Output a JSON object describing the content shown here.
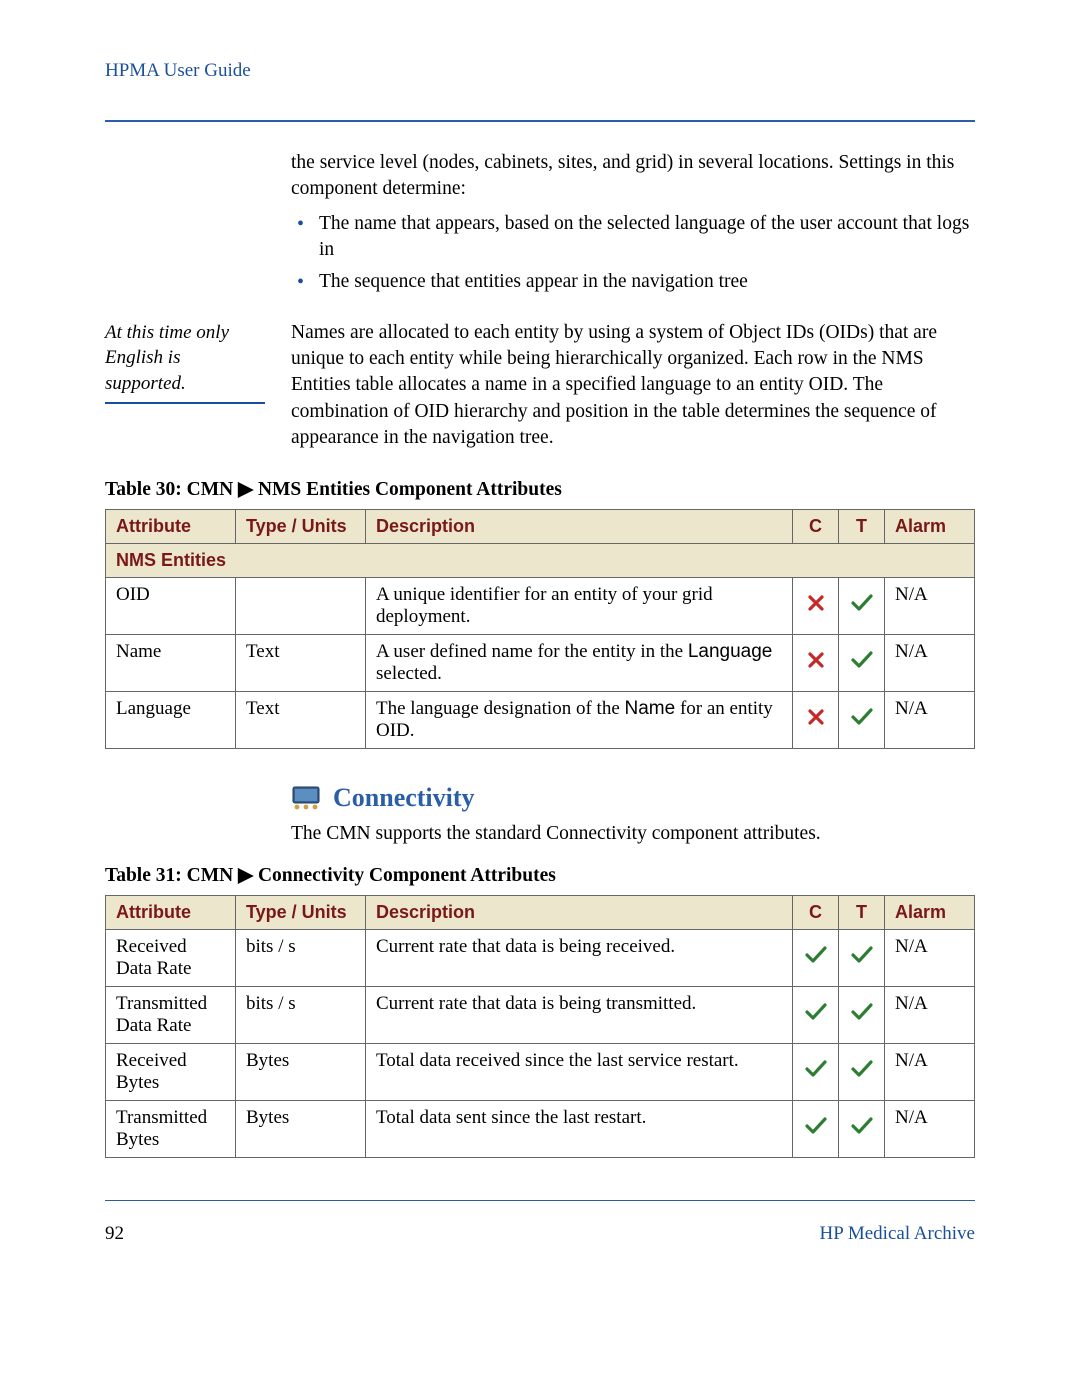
{
  "header": {
    "title": "HPMA User Guide"
  },
  "intro": {
    "paragraph1": "the service level (nodes, cabinets, sites, and grid) in several locations. Settings in this component determine:",
    "bullets": [
      "The name that appears, based on the selected language of the user account that logs in",
      "The sequence that entities appear in the navigation tree"
    ]
  },
  "side_note": "At this time only English is supported.",
  "oid_paragraph": "Names are allocated to each entity by using a system of Object IDs (OIDs) that are unique to each entity while being hierarchically organized. Each row in the NMS Entities table allocates a name in a specified language to an entity OID. The combination of OID hierarchy and position in the table determines the sequence of appearance in the navigation tree.",
  "table30": {
    "caption": "Table 30: CMN ▶ NMS Entities Component Attributes",
    "headers": {
      "attribute": "Attribute",
      "type": "Type / Units",
      "description": "Description",
      "c": "C",
      "t": "T",
      "alarm": "Alarm"
    },
    "section_label": "NMS Entities",
    "rows": [
      {
        "attribute": "OID",
        "type": "",
        "description": "A unique identifier for an entity of your grid deployment.",
        "c": "x",
        "t": "check",
        "alarm": "N/A"
      },
      {
        "attribute": "Name",
        "type": "Text",
        "desc_pre": "A user defined name for the entity in the ",
        "desc_code": "Language",
        "desc_post": " selected.",
        "c": "x",
        "t": "check",
        "alarm": "N/A"
      },
      {
        "attribute": "Language",
        "type": "Text",
        "desc_pre": "The language designation of the ",
        "desc_code": "Name",
        "desc_post": " for an entity OID.",
        "c": "x",
        "t": "check",
        "alarm": "N/A"
      }
    ]
  },
  "connectivity": {
    "heading": "Connectivity",
    "desc": "The CMN supports the standard Connectivity component attributes."
  },
  "table31": {
    "caption": "Table 31: CMN ▶ Connectivity Component Attributes",
    "headers": {
      "attribute": "Attribute",
      "type": "Type / Units",
      "description": "Description",
      "c": "C",
      "t": "T",
      "alarm": "Alarm"
    },
    "rows": [
      {
        "attribute": "Received Data Rate",
        "type": "bits / s",
        "description": "Current rate that data is being received.",
        "c": "check",
        "t": "check",
        "alarm": "N/A"
      },
      {
        "attribute": "Transmitted Data Rate",
        "type": "bits / s",
        "description": "Current rate that data is being transmitted.",
        "c": "check",
        "t": "check",
        "alarm": "N/A"
      },
      {
        "attribute": "Received Bytes",
        "type": "Bytes",
        "description": "Total data received since the last service restart.",
        "c": "check",
        "t": "check",
        "alarm": "N/A"
      },
      {
        "attribute": "Transmitted Bytes",
        "type": "Bytes",
        "description": "Total data sent since the last restart.",
        "c": "check",
        "t": "check",
        "alarm": "N/A"
      }
    ]
  },
  "footer": {
    "page": "92",
    "brand": "HP Medical Archive"
  },
  "colors": {
    "link_blue": "#1a4f9c",
    "heading_blue": "#2a5fa8",
    "table_header_bg": "#ece6cc",
    "table_header_fg": "#7a1818",
    "check_green": "#2e7d32",
    "x_red": "#c62828"
  }
}
